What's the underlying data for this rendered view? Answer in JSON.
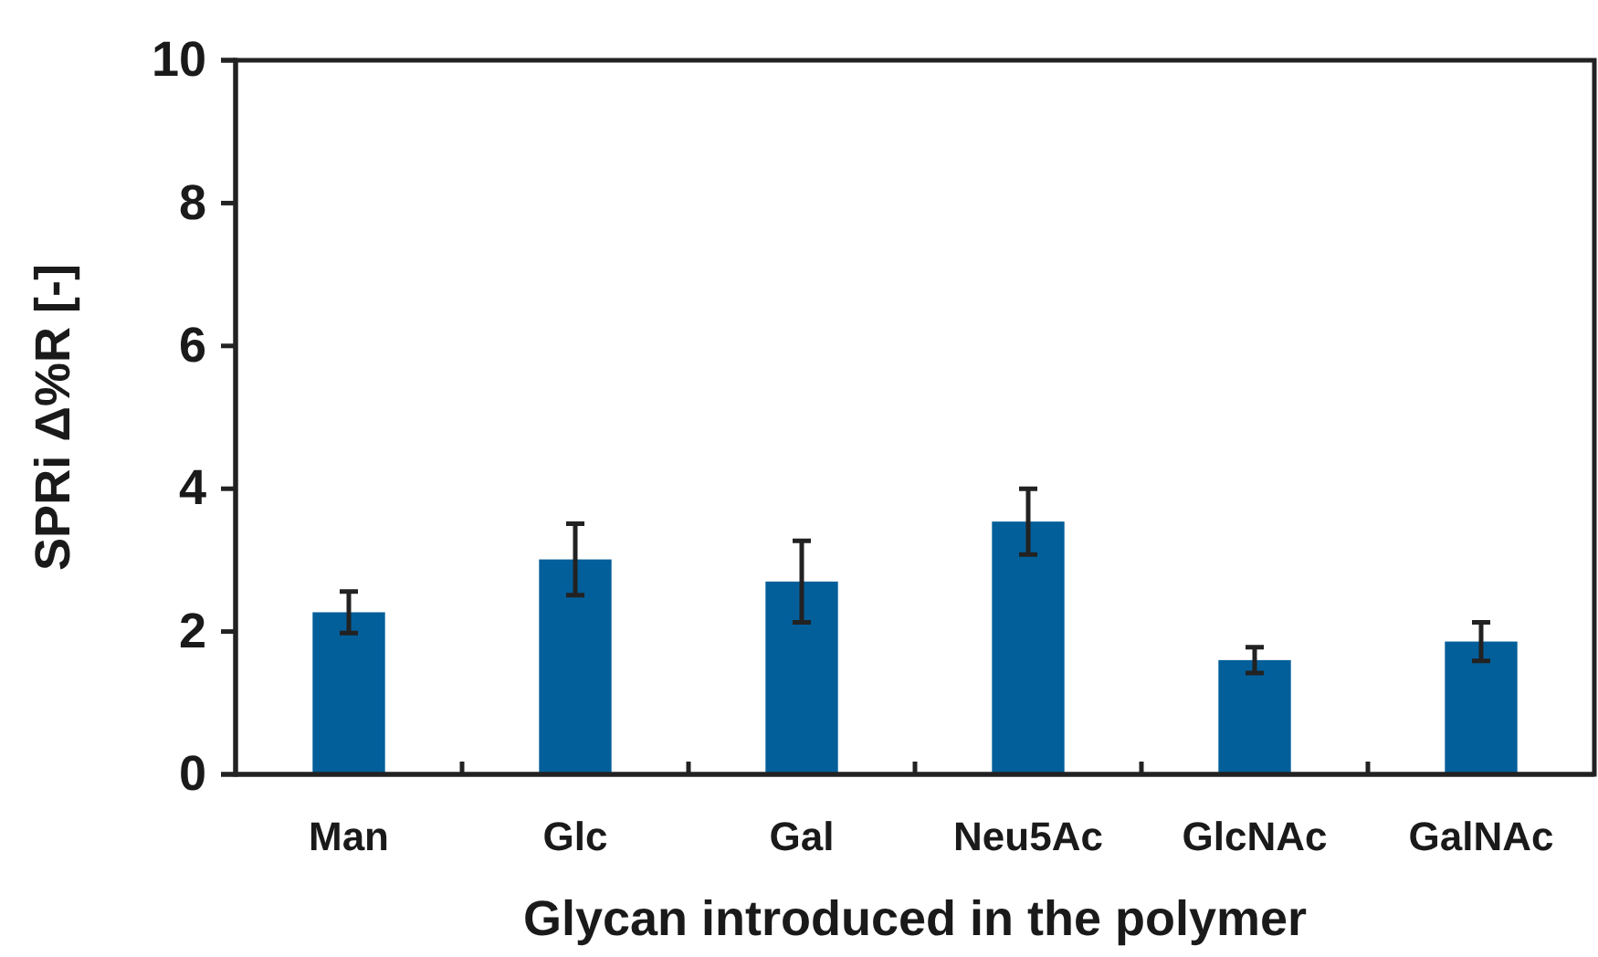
{
  "chart_data": {
    "type": "bar",
    "xlabel": "Glycan introduced in the polymer",
    "ylabel": "SPRi Δ%R [-]",
    "categories": [
      "Man",
      "Glc",
      "Gal",
      "Neu5Ac",
      "GlcNAc",
      "GalNAc"
    ],
    "values": [
      2.27,
      3.01,
      2.7,
      3.54,
      1.6,
      1.86
    ],
    "errors": [
      0.29,
      0.5,
      0.57,
      0.46,
      0.18,
      0.27
    ],
    "color": "#035f9a",
    "ylim": [
      0,
      10
    ],
    "yticks": [
      0,
      2,
      4,
      6,
      8,
      10
    ],
    "grid": false
  }
}
